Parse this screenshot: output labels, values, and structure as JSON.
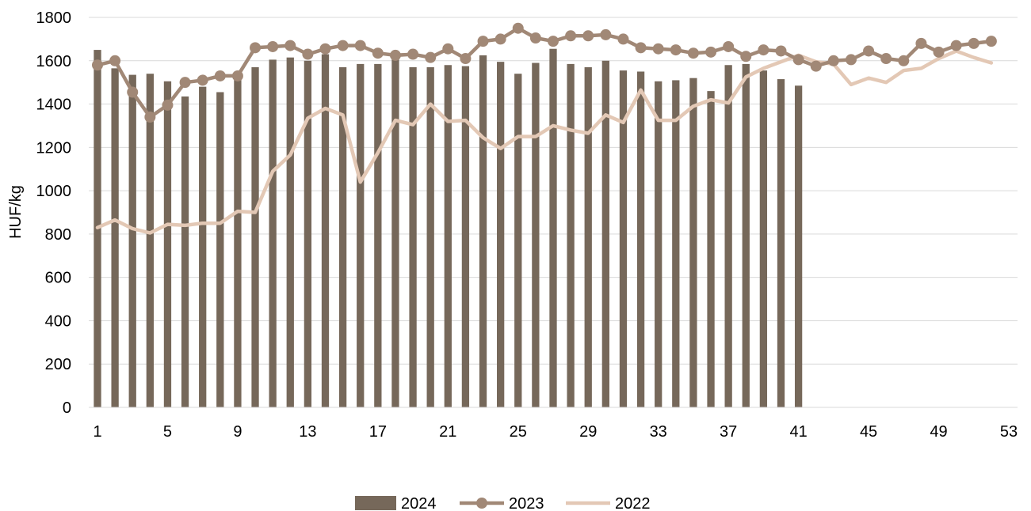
{
  "chart_data": {
    "type": "bar",
    "title": "",
    "ylabel": "HUF/kg",
    "xlabel": "",
    "ylim": [
      0,
      1800
    ],
    "xlim": [
      1,
      53
    ],
    "yticks": [
      0,
      200,
      400,
      600,
      800,
      1000,
      1200,
      1400,
      1600,
      1800
    ],
    "xticks": [
      1,
      5,
      9,
      13,
      17,
      21,
      25,
      29,
      33,
      37,
      41,
      45,
      49,
      53
    ],
    "grid": "horizontal",
    "legend_position": "bottom",
    "colors": {
      "2024": "#76685a",
      "2023": "#a18876",
      "2022": "#e3c8b5"
    },
    "series": [
      {
        "name": "2024",
        "type": "bar",
        "x": [
          1,
          2,
          3,
          4,
          5,
          6,
          7,
          8,
          9,
          10,
          11,
          12,
          13,
          14,
          15,
          16,
          17,
          18,
          19,
          20,
          21,
          22,
          23,
          24,
          25,
          26,
          27,
          28,
          29,
          30,
          31,
          32,
          33,
          34,
          35,
          36,
          37,
          38,
          39,
          40,
          41
        ],
        "values": [
          1650,
          1565,
          1535,
          1540,
          1505,
          1435,
          1480,
          1455,
          1520,
          1570,
          1605,
          1615,
          1600,
          1630,
          1570,
          1585,
          1585,
          1615,
          1570,
          1570,
          1580,
          1575,
          1625,
          1595,
          1540,
          1590,
          1655,
          1585,
          1570,
          1600,
          1555,
          1550,
          1505,
          1510,
          1520,
          1460,
          1580,
          1585,
          1555,
          1515,
          1485
        ]
      },
      {
        "name": "2023",
        "type": "line",
        "marker": "circle",
        "x": [
          1,
          2,
          3,
          4,
          5,
          6,
          7,
          8,
          9,
          10,
          11,
          12,
          13,
          14,
          15,
          16,
          17,
          18,
          19,
          20,
          21,
          22,
          23,
          24,
          25,
          26,
          27,
          28,
          29,
          30,
          31,
          32,
          33,
          34,
          35,
          36,
          37,
          38,
          39,
          40,
          41,
          42,
          43,
          44,
          45,
          46,
          47,
          48,
          49,
          50,
          51,
          52
        ],
        "values": [
          1580,
          1600,
          1455,
          1340,
          1395,
          1500,
          1510,
          1530,
          1530,
          1660,
          1665,
          1670,
          1630,
          1655,
          1670,
          1670,
          1635,
          1625,
          1630,
          1615,
          1655,
          1610,
          1690,
          1700,
          1750,
          1705,
          1690,
          1715,
          1715,
          1720,
          1700,
          1660,
          1655,
          1650,
          1635,
          1640,
          1665,
          1620,
          1650,
          1645,
          1605,
          1575,
          1600,
          1605,
          1645,
          1610,
          1600,
          1680,
          1640,
          1670,
          1680,
          1690
        ]
      },
      {
        "name": "2022",
        "type": "line",
        "x": [
          1,
          2,
          3,
          4,
          5,
          6,
          7,
          8,
          9,
          10,
          11,
          12,
          13,
          14,
          15,
          16,
          17,
          18,
          19,
          20,
          21,
          22,
          23,
          24,
          25,
          26,
          27,
          28,
          29,
          30,
          31,
          32,
          33,
          34,
          35,
          36,
          37,
          38,
          39,
          40,
          41,
          42,
          43,
          44,
          45,
          46,
          47,
          48,
          49,
          50,
          51,
          52
        ],
        "values": [
          830,
          865,
          825,
          805,
          845,
          840,
          850,
          850,
          905,
          900,
          1090,
          1165,
          1335,
          1380,
          1350,
          1040,
          1175,
          1325,
          1305,
          1400,
          1320,
          1325,
          1245,
          1195,
          1250,
          1250,
          1300,
          1280,
          1265,
          1350,
          1315,
          1465,
          1325,
          1325,
          1390,
          1420,
          1405,
          1525,
          1565,
          1595,
          1625,
          1595,
          1585,
          1490,
          1520,
          1500,
          1555,
          1565,
          1610,
          1645,
          1615,
          1590
        ]
      }
    ]
  }
}
